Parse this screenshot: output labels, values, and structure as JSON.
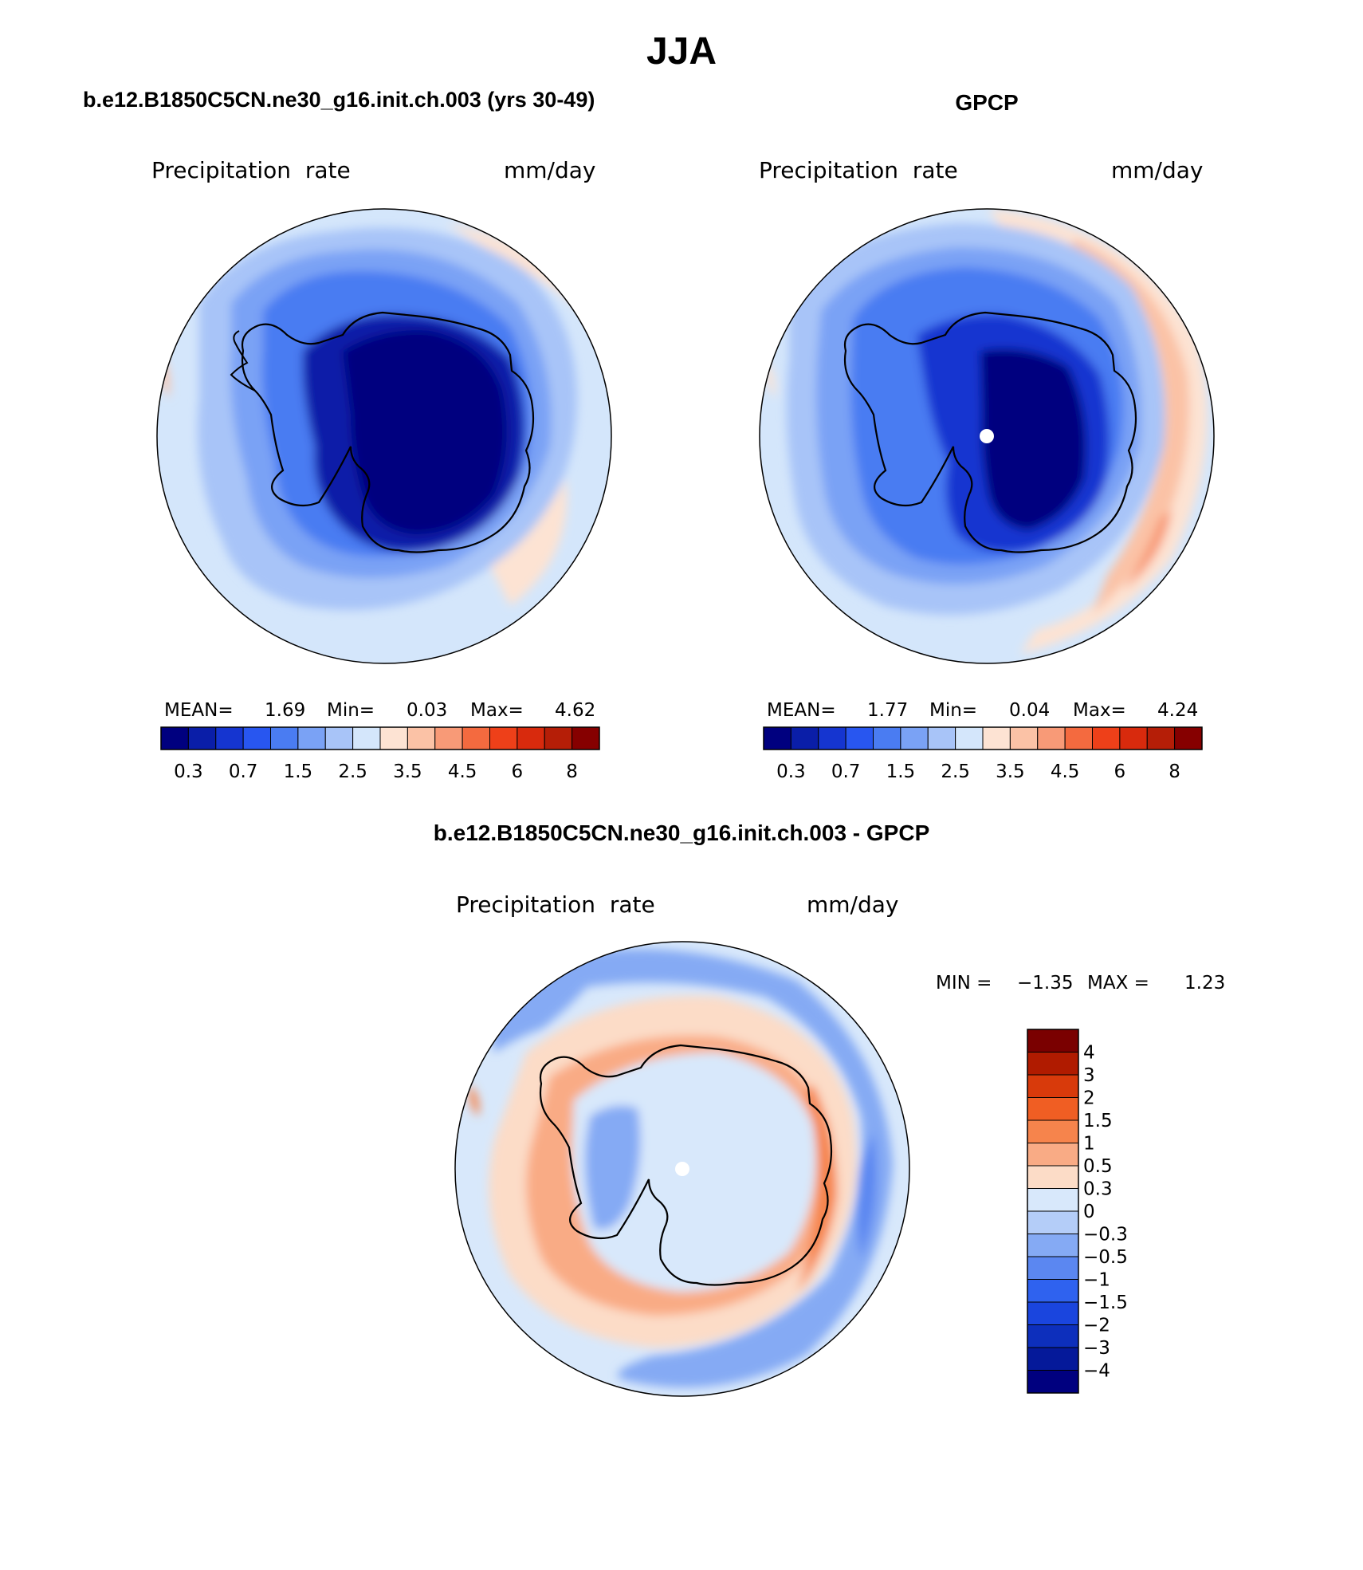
{
  "season": "JJA",
  "panels": [
    {
      "id": "model",
      "title": "b.e12.B1850C5CN.ne30_g16.init.ch.003 (yrs 30-49)",
      "field_label": "Precipitation  rate",
      "units": "mm/day",
      "stats": {
        "mean_label": "MEAN=",
        "mean": "1.69",
        "min_label": "Min=",
        "min": "0.03",
        "max_label": "Max=",
        "max": "4.62"
      }
    },
    {
      "id": "obs",
      "title": "GPCP",
      "field_label": "Precipitation  rate",
      "units": "mm/day",
      "stats": {
        "mean_label": "MEAN=",
        "mean": "1.77",
        "min_label": "Min=",
        "min": "0.04",
        "max_label": "Max=",
        "max": "4.24"
      }
    },
    {
      "id": "diff",
      "title": "b.e12.B1850C5CN.ne30_g16.init.ch.003 - GPCP",
      "field_label": "Precipitation  rate",
      "units": "mm/day",
      "stats": {
        "min_label": "MIN =",
        "min": "−1.35",
        "max_label": "MAX =",
        "max": "1.23"
      }
    }
  ],
  "colorbar_abs": {
    "colors": [
      "#00007f",
      "#0a1ea8",
      "#1535d0",
      "#2856f0",
      "#4a7cf2",
      "#7aa2f5",
      "#a8c4f8",
      "#d4e6fb",
      "#fde3d3",
      "#fbc2a6",
      "#f89a77",
      "#f46a3f",
      "#ee4019",
      "#d82a0d",
      "#b51e07",
      "#860000"
    ],
    "ticks": [
      "0.3",
      "0.7",
      "1.5",
      "2.5",
      "3.5",
      "4.5",
      "6",
      "8"
    ]
  },
  "colorbar_diff": {
    "colors_top_to_bottom": [
      "#7a0000",
      "#b01b00",
      "#d83a0b",
      "#f05e23",
      "#f6844c",
      "#f9ab85",
      "#fcdcc7",
      "#d8e8fb",
      "#b4cdf8",
      "#85aaf4",
      "#5b87f1",
      "#2f62ef",
      "#1a45de",
      "#0d2fbc",
      "#05199a",
      "#00007f"
    ],
    "labels": [
      "4",
      "3",
      "2",
      "1.5",
      "1",
      "0.5",
      "0.3",
      "0",
      "−0.3",
      "−0.5",
      "−1",
      "−1.5",
      "−2",
      "−3",
      "−4"
    ]
  },
  "map_colors": {
    "ocean_far_abs": "#d4e6fb",
    "ring_light_abs": "#a8c4f8",
    "ring_mid_abs": "#7aa2f5",
    "ring_blue_abs": "#4a7cf2",
    "interior_deep": "#00007f",
    "interior_dark": "#0a1ea8",
    "warm_pale": "#fde3d3",
    "warm_orange": "#fbc2a6",
    "diff_land": "#d8e8fb",
    "diff_neg": "#85aaf4",
    "diff_neg_mid": "#5b87f1",
    "diff_pos": "#fcdcc7",
    "diff_pos_mid": "#f9ab85",
    "diff_pos_strong": "#f6844c"
  }
}
